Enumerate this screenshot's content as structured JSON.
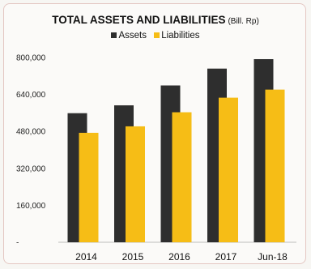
{
  "chart_data": {
    "type": "bar",
    "title": "TOTAL ASSETS AND LIABILITIES",
    "unit": "(Bill. Rp)",
    "categories": [
      "2014",
      "2015",
      "2016",
      "2017",
      "Jun-18"
    ],
    "series": [
      {
        "name": "Assets",
        "color": "#2e2e2e",
        "values": [
          559000,
          593000,
          679000,
          752000,
          793000
        ]
      },
      {
        "name": "Liabilities",
        "color": "#f6bd16",
        "values": [
          474000,
          502000,
          563000,
          626000,
          661000
        ]
      }
    ],
    "yticks": [
      "800,000",
      "640,000",
      "480,000",
      "320,000",
      "160,000",
      "-"
    ],
    "ytick_values": [
      800000,
      640000,
      480000,
      320000,
      160000,
      0
    ],
    "ylim": [
      0,
      800000
    ],
    "xlabel": "",
    "ylabel": "",
    "grid": false,
    "legend_position": "top"
  }
}
